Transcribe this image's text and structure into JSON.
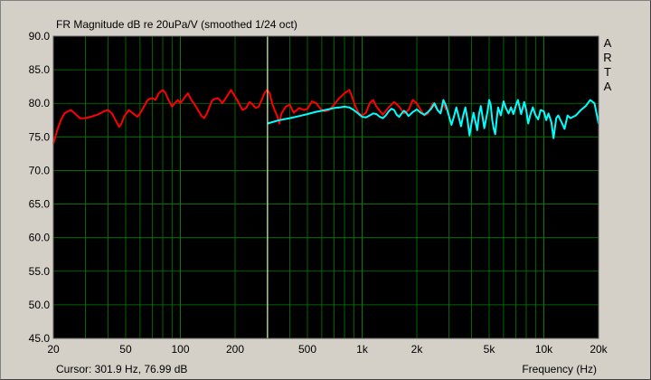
{
  "header": {
    "title": "FR Magnitude dB re 20uPa/V (smoothed 1/24 oct)"
  },
  "brand": {
    "letters": [
      "A",
      "R",
      "T",
      "A"
    ]
  },
  "footer": {
    "cursor_text": "Cursor: 301.9 Hz, 76.99 dB",
    "xlabel": "Frequency (Hz)"
  },
  "colors": {
    "background": "#000000",
    "grid": "#008000",
    "series_red": "#ff0000",
    "series_cyan": "#00ffff",
    "cursor": "#ffffc0"
  },
  "chart_data": {
    "type": "line",
    "title": "FR Magnitude dB re 20uPa/V (smoothed 1/24 oct)",
    "xlabel": "Frequency (Hz)",
    "ylabel": "",
    "x_scale": "log",
    "xlim": [
      20,
      20000
    ],
    "ylim": [
      45,
      90
    ],
    "x_ticks": [
      20,
      50,
      100,
      200,
      500,
      1000,
      2000,
      5000,
      10000,
      20000
    ],
    "x_tick_labels": [
      "20",
      "50",
      "100",
      "200",
      "500",
      "1k",
      "2k",
      "5k",
      "10k",
      "20k"
    ],
    "y_ticks": [
      45,
      50,
      55,
      60,
      65,
      70,
      75,
      80,
      85,
      90
    ],
    "y_tick_labels": [
      "45.0",
      "50.0",
      "55.0",
      "60.0",
      "65.0",
      "70.0",
      "75.0",
      "80.0",
      "85.0",
      "90.0"
    ],
    "grid": true,
    "cursor": {
      "x": 301.9,
      "y": 76.99
    },
    "series": [
      {
        "color": "#ff0000",
        "points": [
          [
            20,
            74
          ],
          [
            21,
            76
          ],
          [
            22,
            77.5
          ],
          [
            23,
            78.5
          ],
          [
            24,
            78.8
          ],
          [
            25,
            79
          ],
          [
            26,
            78.6
          ],
          [
            27,
            78.2
          ],
          [
            28,
            77.8
          ],
          [
            30,
            77.8
          ],
          [
            32,
            78
          ],
          [
            35,
            78.3
          ],
          [
            38,
            78.8
          ],
          [
            40,
            79
          ],
          [
            42,
            78.5
          ],
          [
            44,
            77.5
          ],
          [
            46,
            76.5
          ],
          [
            47,
            76.8
          ],
          [
            49,
            78
          ],
          [
            52,
            79
          ],
          [
            55,
            78.5
          ],
          [
            58,
            78
          ],
          [
            60,
            78.5
          ],
          [
            63,
            79.5
          ],
          [
            66,
            80.5
          ],
          [
            70,
            80.8
          ],
          [
            73,
            80.5
          ],
          [
            76,
            81.5
          ],
          [
            80,
            82
          ],
          [
            83,
            81.5
          ],
          [
            86,
            80.5
          ],
          [
            90,
            79.5
          ],
          [
            93,
            80
          ],
          [
            97,
            80.5
          ],
          [
            100,
            80
          ],
          [
            105,
            80.8
          ],
          [
            110,
            81.5
          ],
          [
            115,
            80.5
          ],
          [
            120,
            79.8
          ],
          [
            125,
            79
          ],
          [
            130,
            78.2
          ],
          [
            135,
            77.8
          ],
          [
            140,
            78.5
          ],
          [
            145,
            79.5
          ],
          [
            150,
            80.5
          ],
          [
            160,
            80.8
          ],
          [
            165,
            80.5
          ],
          [
            170,
            80
          ],
          [
            180,
            81
          ],
          [
            190,
            82
          ],
          [
            200,
            81
          ],
          [
            210,
            80
          ],
          [
            220,
            79
          ],
          [
            230,
            79.3
          ],
          [
            240,
            80.2
          ],
          [
            250,
            79.8
          ],
          [
            260,
            79.3
          ],
          [
            270,
            79.5
          ],
          [
            280,
            80.5
          ],
          [
            290,
            81.5
          ],
          [
            300,
            82
          ],
          [
            310,
            81.5
          ],
          [
            320,
            80
          ],
          [
            330,
            79
          ],
          [
            340,
            78.2
          ],
          [
            350,
            77
          ],
          [
            360,
            78.5
          ],
          [
            380,
            79.5
          ],
          [
            400,
            79.8
          ],
          [
            420,
            78.6
          ],
          [
            450,
            79.3
          ],
          [
            480,
            79
          ],
          [
            500,
            79.2
          ],
          [
            530,
            80.3
          ],
          [
            560,
            80
          ],
          [
            590,
            79.2
          ],
          [
            620,
            78.8
          ],
          [
            660,
            79
          ],
          [
            700,
            79.8
          ],
          [
            750,
            80.8
          ],
          [
            800,
            81.5
          ],
          [
            850,
            82
          ],
          [
            880,
            81
          ],
          [
            920,
            79.5
          ],
          [
            960,
            78.5
          ],
          [
            1000,
            78.2
          ],
          [
            1050,
            78.6
          ],
          [
            1100,
            80
          ],
          [
            1150,
            80.5
          ],
          [
            1200,
            79.5
          ],
          [
            1300,
            78.3
          ],
          [
            1400,
            79.4
          ],
          [
            1500,
            80.2
          ],
          [
            1600,
            79.5
          ],
          [
            1700,
            78.5
          ],
          [
            1800,
            79
          ],
          [
            1900,
            80.5
          ],
          [
            2000,
            80
          ],
          [
            2100,
            79
          ],
          [
            2200,
            78.2
          ],
          [
            2300,
            78.5
          ],
          [
            2450,
            80
          ],
          [
            2600,
            79
          ],
          [
            2700,
            78.5
          ],
          [
            2800,
            80
          ],
          [
            2900,
            79
          ]
        ]
      },
      {
        "color": "#00ffff",
        "points": [
          [
            302,
            77
          ],
          [
            320,
            77.2
          ],
          [
            350,
            77.5
          ],
          [
            400,
            77.8
          ],
          [
            450,
            78.1
          ],
          [
            500,
            78.4
          ],
          [
            550,
            78.7
          ],
          [
            600,
            78.9
          ],
          [
            650,
            79.1
          ],
          [
            700,
            79.3
          ],
          [
            750,
            79.4
          ],
          [
            800,
            79.5
          ],
          [
            850,
            79.4
          ],
          [
            900,
            79
          ],
          [
            950,
            78.5
          ],
          [
            1000,
            78
          ],
          [
            1050,
            77.9
          ],
          [
            1100,
            78.2
          ],
          [
            1150,
            78.5
          ],
          [
            1200,
            78.4
          ],
          [
            1250,
            78
          ],
          [
            1300,
            77.8
          ],
          [
            1350,
            78.2
          ],
          [
            1400,
            78.8
          ],
          [
            1450,
            79.2
          ],
          [
            1500,
            79
          ],
          [
            1550,
            78.3
          ],
          [
            1600,
            78
          ],
          [
            1650,
            78.5
          ],
          [
            1700,
            78.9
          ],
          [
            1750,
            78.6
          ],
          [
            1800,
            78.1
          ],
          [
            1900,
            78.7
          ],
          [
            2000,
            79.1
          ],
          [
            2100,
            78.6
          ],
          [
            2200,
            78.3
          ],
          [
            2300,
            78.7
          ],
          [
            2400,
            79.2
          ],
          [
            2500,
            80
          ],
          [
            2600,
            79
          ],
          [
            2700,
            78.5
          ],
          [
            2800,
            80.5
          ],
          [
            2900,
            79.6
          ],
          [
            3000,
            78.2
          ],
          [
            3100,
            76.8
          ],
          [
            3200,
            78
          ],
          [
            3300,
            79.4
          ],
          [
            3400,
            78
          ],
          [
            3500,
            76.6
          ],
          [
            3600,
            78.2
          ],
          [
            3700,
            79.4
          ],
          [
            3800,
            77.6
          ],
          [
            3900,
            75.2
          ],
          [
            4000,
            77
          ],
          [
            4100,
            78.6
          ],
          [
            4200,
            77.3
          ],
          [
            4300,
            76
          ],
          [
            4400,
            78.4
          ],
          [
            4500,
            79.6
          ],
          [
            4600,
            78
          ],
          [
            4700,
            76.3
          ],
          [
            4800,
            77.5
          ],
          [
            4900,
            78.8
          ],
          [
            5000,
            80.5
          ],
          [
            5100,
            79.8
          ],
          [
            5200,
            77.5
          ],
          [
            5300,
            76.2
          ],
          [
            5400,
            75.4
          ],
          [
            5500,
            77.6
          ],
          [
            5600,
            79.4
          ],
          [
            5800,
            78.2
          ],
          [
            6000,
            80.3
          ],
          [
            6200,
            79.2
          ],
          [
            6400,
            78.5
          ],
          [
            6600,
            79.4
          ],
          [
            6800,
            78.4
          ],
          [
            7000,
            79.6
          ],
          [
            7200,
            80.5
          ],
          [
            7500,
            78.4
          ],
          [
            7800,
            80.2
          ],
          [
            8000,
            79
          ],
          [
            8200,
            77
          ],
          [
            8400,
            78.2
          ],
          [
            8700,
            79.4
          ],
          [
            9000,
            78.2
          ],
          [
            9300,
            77.6
          ],
          [
            9600,
            79
          ],
          [
            10000,
            78.8
          ],
          [
            10300,
            77.5
          ],
          [
            10600,
            78.5
          ],
          [
            11000,
            77.2
          ],
          [
            11300,
            74.8
          ],
          [
            11700,
            77.8
          ],
          [
            12000,
            78.2
          ],
          [
            12500,
            77.2
          ],
          [
            13000,
            76.2
          ],
          [
            13500,
            78.2
          ],
          [
            14000,
            77.8
          ],
          [
            15000,
            78.2
          ],
          [
            16000,
            79
          ],
          [
            17000,
            79.6
          ],
          [
            18000,
            80.5
          ],
          [
            19000,
            80
          ],
          [
            20000,
            77
          ]
        ]
      }
    ]
  }
}
